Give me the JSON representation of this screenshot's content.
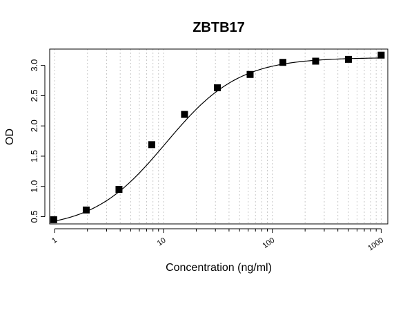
{
  "chart_data": {
    "type": "scatter",
    "title": "ZBTB17",
    "xlabel": "Concentration (ng/ml)",
    "ylabel": "OD",
    "x_scale": "log",
    "xlim": [
      0.9,
      1150
    ],
    "ylim": [
      0.38,
      3.27
    ],
    "grid": "vertical dotted minor lines (x axis)",
    "x_ticks": [
      {
        "value": 1,
        "label": "1"
      },
      {
        "value": 10,
        "label": "10"
      },
      {
        "value": 100,
        "label": "100"
      },
      {
        "value": 1000,
        "label": "1000"
      }
    ],
    "y_ticks": [
      {
        "value": 0.5,
        "label": "0.5"
      },
      {
        "value": 1.0,
        "label": "1.0"
      },
      {
        "value": 1.5,
        "label": "1.5"
      },
      {
        "value": 2.0,
        "label": "2.0"
      },
      {
        "value": 2.5,
        "label": "2.5"
      },
      {
        "value": 3.0,
        "label": "3.0"
      }
    ],
    "points": [
      {
        "x": 0.98,
        "y": 0.45
      },
      {
        "x": 1.95,
        "y": 0.61
      },
      {
        "x": 3.9,
        "y": 0.95
      },
      {
        "x": 7.8,
        "y": 1.69
      },
      {
        "x": 15.6,
        "y": 2.19
      },
      {
        "x": 31.25,
        "y": 2.63
      },
      {
        "x": 62.5,
        "y": 2.85
      },
      {
        "x": 125,
        "y": 3.05
      },
      {
        "x": 250,
        "y": 3.07
      },
      {
        "x": 500,
        "y": 3.1
      },
      {
        "x": 1000,
        "y": 3.17
      }
    ],
    "fit_curve": {
      "model": "4PL",
      "bottom": 0.3,
      "top": 3.13,
      "ec50": 10.5,
      "hill": 1.3
    },
    "colors": {
      "points": "#000000",
      "curve": "#000000",
      "grid": "#c8c8c8"
    }
  }
}
